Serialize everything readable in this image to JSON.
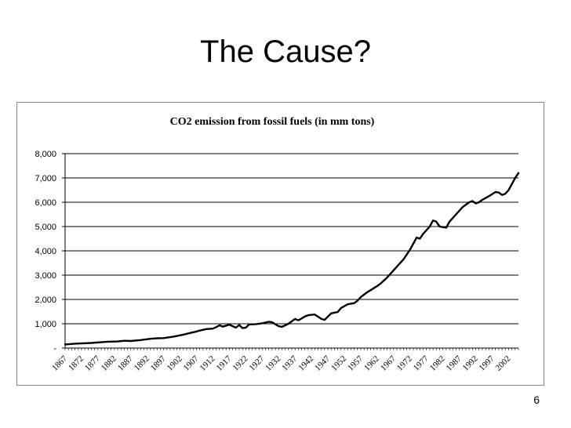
{
  "slide": {
    "title": "The Cause?",
    "page_number": "6"
  },
  "chart_data": {
    "type": "line",
    "title": "CO2 emission from fossil fuels (in mm tons)",
    "xlabel": "",
    "ylabel": "",
    "xlim": [
      1867,
      2005
    ],
    "ylim": [
      0,
      8000
    ],
    "grid": "horizontal",
    "yticks": [
      0,
      1000,
      2000,
      3000,
      4000,
      5000,
      6000,
      7000,
      8000
    ],
    "ytick_labels": [
      "-",
      "1,000",
      "2,000",
      "3,000",
      "4,000",
      "5,000",
      "6,000",
      "7,000",
      "8,000"
    ],
    "xticks": [
      1867,
      1872,
      1877,
      1882,
      1887,
      1892,
      1897,
      1902,
      1907,
      1912,
      1917,
      1922,
      1927,
      1932,
      1937,
      1942,
      1947,
      1952,
      1957,
      1962,
      1967,
      1972,
      1977,
      1982,
      1987,
      1992,
      1997,
      2002
    ],
    "series": [
      {
        "line_color": "#000000",
        "x": [
          1867,
          1870,
          1875,
          1880,
          1883,
          1885,
          1887,
          1890,
          1893,
          1895,
          1897,
          1900,
          1903,
          1905,
          1907,
          1908,
          1910,
          1912,
          1913,
          1914,
          1915,
          1917,
          1918,
          1919,
          1920,
          1921,
          1922,
          1923,
          1925,
          1927,
          1929,
          1930,
          1931,
          1932,
          1933,
          1935,
          1937,
          1938,
          1940,
          1941,
          1943,
          1945,
          1946,
          1948,
          1950,
          1951,
          1953,
          1955,
          1956,
          1957,
          1959,
          1960,
          1962,
          1963,
          1965,
          1967,
          1970,
          1972,
          1974,
          1975,
          1976,
          1978,
          1979,
          1980,
          1981,
          1983,
          1984,
          1986,
          1988,
          1990,
          1991,
          1992,
          1993,
          1994,
          1996,
          1998,
          1999,
          2000,
          2001,
          2002,
          2003,
          2004,
          2005
        ],
        "y": [
          150,
          180,
          210,
          260,
          270,
          300,
          290,
          330,
          380,
          400,
          410,
          470,
          550,
          620,
          680,
          720,
          780,
          800,
          860,
          940,
          880,
          960,
          900,
          840,
          950,
          820,
          840,
          970,
          980,
          1020,
          1080,
          1060,
          980,
          900,
          870,
          1000,
          1200,
          1140,
          1300,
          1350,
          1380,
          1200,
          1160,
          1430,
          1480,
          1650,
          1800,
          1850,
          1950,
          2100,
          2300,
          2380,
          2550,
          2650,
          2900,
          3200,
          3650,
          4050,
          4550,
          4500,
          4700,
          5000,
          5250,
          5200,
          5000,
          4950,
          5200,
          5500,
          5800,
          6000,
          6050,
          5950,
          6000,
          6100,
          6250,
          6420,
          6400,
          6300,
          6350,
          6500,
          6750,
          7000,
          7200
        ]
      }
    ]
  }
}
